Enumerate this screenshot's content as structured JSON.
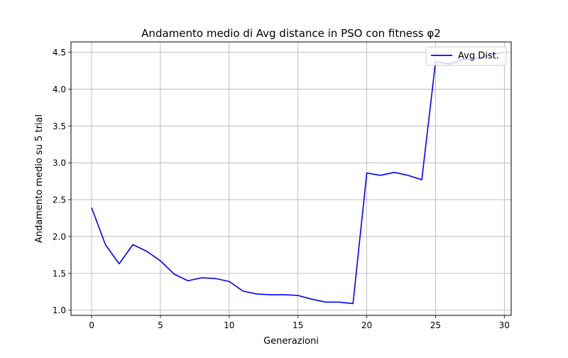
{
  "chart_data": {
    "type": "line",
    "title": "Andamento medio di Avg distance in PSO con fitness φ2",
    "xlabel": "Generazioni",
    "ylabel": "Andamento medio su 5 trial",
    "xlim": [
      -1.5,
      30.5
    ],
    "ylim": [
      0.93,
      4.64
    ],
    "xticks": [
      0,
      5,
      10,
      15,
      20,
      25,
      30
    ],
    "xtick_labels": [
      "0",
      "5",
      "10",
      "15",
      "20",
      "25",
      "30"
    ],
    "yticks": [
      1.0,
      1.5,
      2.0,
      2.5,
      3.0,
      3.5,
      4.0,
      4.5
    ],
    "ytick_labels": [
      "1.0",
      "1.5",
      "2.0",
      "2.5",
      "3.0",
      "3.5",
      "4.0",
      "4.5"
    ],
    "grid": true,
    "legend_position": "upper right",
    "series": [
      {
        "name": "Avg Dist.",
        "color": "#0000ff",
        "x": [
          0,
          1,
          2,
          3,
          4,
          5,
          6,
          7,
          8,
          9,
          10,
          11,
          12,
          13,
          14,
          15,
          16,
          17,
          18,
          19,
          20,
          21,
          22,
          23,
          24,
          25,
          26,
          27,
          28,
          29,
          30
        ],
        "y": [
          2.39,
          1.89,
          1.63,
          1.89,
          1.8,
          1.67,
          1.49,
          1.4,
          1.44,
          1.43,
          1.39,
          1.26,
          1.22,
          1.21,
          1.21,
          1.2,
          1.15,
          1.11,
          1.11,
          1.09,
          2.86,
          2.83,
          2.87,
          2.83,
          2.77,
          4.37,
          4.34,
          4.4,
          4.42,
          4.46,
          4.5
        ]
      }
    ]
  }
}
